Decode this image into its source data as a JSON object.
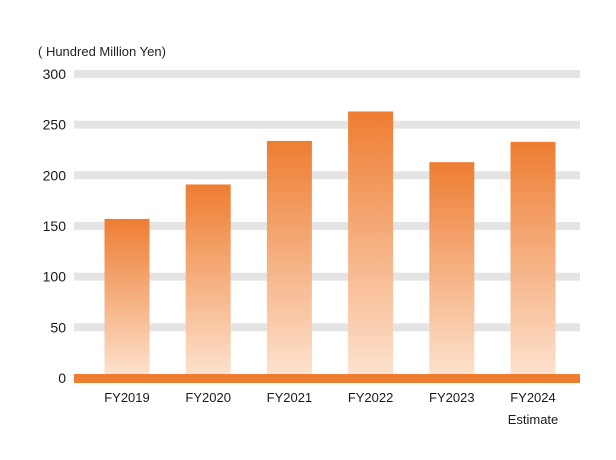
{
  "chart_data": {
    "type": "bar",
    "unit_label": "( Hundred Million Yen)",
    "categories": [
      "FY2019",
      "FY2020",
      "FY2021",
      "FY2022",
      "FY2023",
      "FY2024"
    ],
    "sub_labels": [
      "",
      "",
      "",
      "",
      "",
      "Estimate"
    ],
    "values": [
      157,
      191,
      234,
      263,
      213,
      233
    ],
    "ylim": [
      0,
      300
    ],
    "yticks": [
      0,
      50,
      100,
      150,
      200,
      250,
      300
    ],
    "grid": true,
    "colors": {
      "bar_top": "#ee7d32",
      "bar_bottom": "#fde3d0",
      "grid": "#e4e4e4",
      "baseline": "#ee7d32"
    }
  }
}
